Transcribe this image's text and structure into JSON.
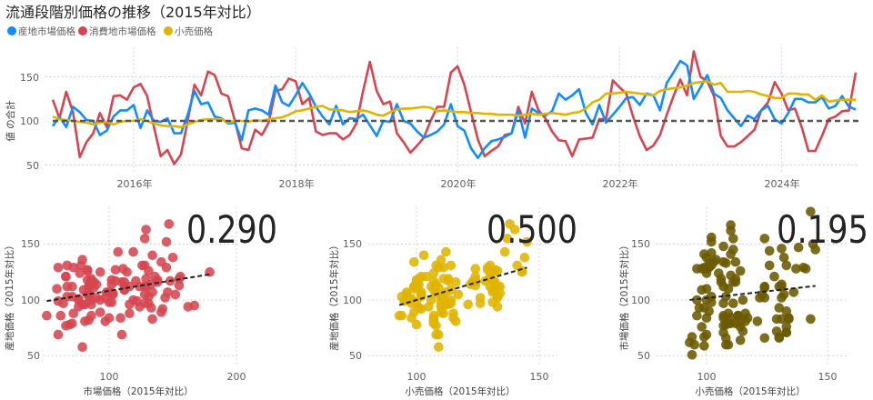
{
  "title": "流通段階別価格の推移（2015年対比）",
  "colors": {
    "sanchi": "#118DFF",
    "shohichi": "#D64550",
    "kouri": "#E0B400",
    "scatter3": "#6B5A00",
    "reference": "#555555"
  },
  "legend": [
    {
      "label": "産地市場価格",
      "color": "#118DFF"
    },
    {
      "label": "消費地市場価格",
      "color": "#D64550"
    },
    {
      "label": "小売価格",
      "color": "#E0B400"
    }
  ],
  "chart_data": [
    {
      "type": "line",
      "ylabel": "値 の合計",
      "x_start": "2015-01",
      "x_end": "2024-12",
      "x_interval": "month",
      "x_ticks": [
        "2016年",
        "2018年",
        "2020年",
        "2022年",
        "2024年"
      ],
      "y_ticks": [
        "150",
        "100",
        "50"
      ],
      "reference_line": 100,
      "grid": true,
      "legend_position": "top-left",
      "series": [
        {
          "name": "産地市場価格",
          "values": [
            94,
            105,
            93,
            116,
            110,
            101,
            100,
            84,
            89,
            105,
            112,
            112,
            118,
            92,
            112,
            100,
            99,
            103,
            86,
            86,
            107,
            134,
            119,
            121,
            105,
            103,
            97,
            98,
            78,
            112,
            114,
            112,
            107,
            140,
            121,
            117,
            129,
            143,
            131,
            116,
            105,
            96,
            117,
            96,
            103,
            102,
            107,
            95,
            83,
            100,
            99,
            119,
            100,
            97,
            88,
            81,
            84,
            88,
            96,
            119,
            94,
            89,
            69,
            58,
            69,
            77,
            79,
            82,
            86,
            112,
            81,
            114,
            109,
            106,
            111,
            131,
            124,
            129,
            136,
            109,
            96,
            118,
            98,
            107,
            116,
            126,
            127,
            118,
            131,
            129,
            112,
            143,
            155,
            168,
            163,
            125,
            138,
            152,
            131,
            126,
            112,
            103,
            94,
            106,
            102,
            112,
            117,
            102,
            97,
            109,
            125,
            125,
            121,
            121,
            127,
            114,
            117,
            128,
            116,
            113
          ]
        },
        {
          "name": "消費地市場価格",
          "values": [
            124,
            103,
            133,
            110,
            59,
            76,
            86,
            109,
            93,
            128,
            129,
            124,
            138,
            142,
            128,
            93,
            60,
            67,
            51,
            62,
            100,
            141,
            129,
            156,
            152,
            131,
            128,
            100,
            69,
            67,
            90,
            84,
            98,
            134,
            136,
            148,
            145,
            119,
            126,
            88,
            84,
            86,
            86,
            79,
            84,
            97,
            134,
            167,
            134,
            119,
            122,
            86,
            76,
            64,
            72,
            81,
            100,
            116,
            116,
            155,
            162,
            141,
            110,
            79,
            60,
            66,
            71,
            84,
            86,
            116,
            97,
            133,
            112,
            103,
            88,
            78,
            77,
            60,
            79,
            80,
            81,
            102,
            102,
            146,
            138,
            131,
            105,
            83,
            67,
            72,
            84,
            107,
            128,
            147,
            129,
            179,
            150,
            145,
            128,
            83,
            71,
            71,
            76,
            83,
            90,
            112,
            121,
            144,
            131,
            112,
            114,
            93,
            66,
            66,
            83,
            102,
            105,
            111,
            112,
            155
          ]
        },
        {
          "name": "小売価格",
          "values": [
            105,
            102,
            101,
            100,
            99,
            98,
            96,
            98,
            99,
            96,
            99,
            100,
            100,
            102,
            100,
            97,
            95,
            94,
            94,
            93,
            96,
            99,
            101,
            102,
            102,
            102,
            98,
            100,
            100,
            99,
            101,
            100,
            102,
            103,
            104,
            107,
            111,
            112,
            114,
            116,
            117,
            113,
            113,
            112,
            110,
            111,
            112,
            110,
            107,
            106,
            110,
            113,
            114,
            114,
            115,
            116,
            115,
            111,
            112,
            111,
            110,
            110,
            109,
            109,
            108,
            108,
            107,
            107,
            107,
            106,
            107,
            108,
            107,
            108,
            109,
            108,
            107,
            109,
            110,
            114,
            121,
            124,
            131,
            131,
            132,
            133,
            132,
            131,
            130,
            129,
            134,
            136,
            137,
            138,
            140,
            143,
            144,
            145,
            141,
            143,
            133,
            133,
            133,
            134,
            133,
            130,
            128,
            126,
            126,
            131,
            131,
            130,
            130,
            124,
            129,
            122,
            123,
            124,
            124,
            124
          ]
        }
      ]
    },
    {
      "type": "scatter",
      "value_label": "0.290",
      "x_from_series": "消費地市場価格",
      "y_from_series": "産地市場価格",
      "xlabel": "市場価格（2015年対比）",
      "ylabel": "産地価格（2015年対比）",
      "x_ticks": [
        "100",
        "200"
      ],
      "y_ticks": [
        "150",
        "100",
        "50"
      ],
      "xlim": [
        50,
        200
      ],
      "trendline": true,
      "color": "#D64550"
    },
    {
      "type": "scatter",
      "value_label": "0.500",
      "x_from_series": "小売価格",
      "y_from_series": "産地市場価格",
      "xlabel": "小売価格（2015年対比）",
      "ylabel": "産地価格（2015年対比）",
      "x_ticks": [
        "100",
        "150"
      ],
      "y_ticks": [
        "150",
        "100",
        "50"
      ],
      "xlim": [
        80,
        158
      ],
      "trendline": true,
      "color": "#E0B400"
    },
    {
      "type": "scatter",
      "value_label": "0.195",
      "x_from_series": "小売価格",
      "y_from_series": "消費地市場価格",
      "xlabel": "小売価格（2015年対比）",
      "ylabel": "市場価格（2015年対比）",
      "x_ticks": [
        "100",
        "150"
      ],
      "y_ticks": [
        "150",
        "100",
        "50"
      ],
      "xlim": [
        79,
        158
      ],
      "trendline": true,
      "color": "#6B5A00"
    }
  ]
}
